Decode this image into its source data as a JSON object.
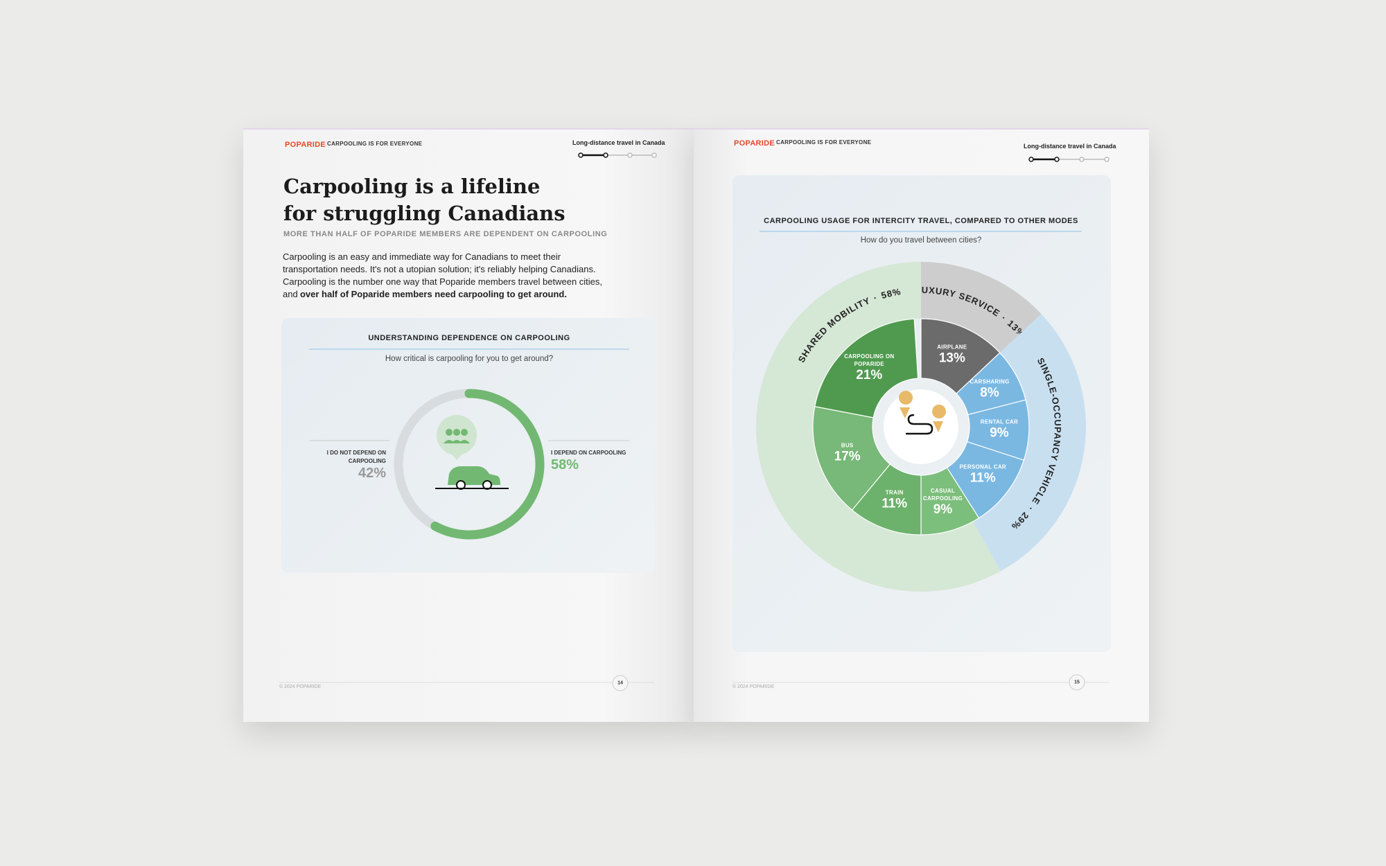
{
  "left_page": {
    "brand": "POPARIDE",
    "section": "CARPOOLING IS FOR EVERYONE",
    "chapter": "Long-distance travel in Canada",
    "title_lines": [
      "Carpooling is a lifeline",
      "for struggling Canadians"
    ],
    "subtitle": "MORE THAN HALF OF POPARIDE MEMBERS ARE DEPENDENT ON CARPOOLING",
    "body": "Carpooling is an easy and immediate way for Canadians to meet their transportation needs. It's not a utopian solution; it's reliably helping Canadians. Carpooling is the number one way that Poparide members travel between cities, and",
    "body_bold": "over half of Poparide members need carpooling to get around.",
    "footer": "© 2024 POPARIDE",
    "page_number": "14"
  },
  "right_page": {
    "brand": "POPARIDE",
    "section": "CARPOOLING IS FOR EVERYONE",
    "chapter": "Long-distance travel in Canada",
    "footer": "© 2024 POPARIDE",
    "page_number": "15"
  },
  "chart_data": [
    {
      "type": "donut",
      "title": "UNDERSTANDING DEPENDENCE ON CARPOOLING",
      "subtitle": "How critical is carpooling for you to get around?",
      "categories": [
        "I DO NOT DEPEND ON CARPOOLING",
        "I DEPEND ON CARPOOLING"
      ],
      "values": [
        42,
        58
      ],
      "value_labels": [
        "42%",
        "58%"
      ],
      "colors": [
        "#d9dcde",
        "#72b872"
      ]
    },
    {
      "type": "sunburst",
      "title": "CARPOOLING USAGE FOR INTERCITY TRAVEL, COMPARED TO OTHER MODES",
      "subtitle": "How do you travel between cities?",
      "separator": "·",
      "series": [
        {
          "name": "LUXURY SERVICE",
          "value": 13,
          "value_label": "13%",
          "color": "#cdcdcd",
          "children": [
            {
              "name": "AIRPLANE",
              "value": 13,
              "value_label": "13%",
              "color": "#6b6b6b"
            }
          ]
        },
        {
          "name": "SINGLE-OCCUPANCY VEHICLE",
          "value": 29,
          "value_label": "29%",
          "color": "#c8dff0",
          "children": [
            {
              "name": "CARSHARING",
              "value": 8,
              "value_label": "8%",
              "color": "#7ab8e2"
            },
            {
              "name": "RENTAL CAR",
              "value": 9,
              "value_label": "9%",
              "color": "#7ab8e2"
            },
            {
              "name": "PERSONAL CAR",
              "value": 11,
              "value_label": "11%",
              "color": "#7ab8e2"
            }
          ]
        },
        {
          "name": "SHARED MOBILITY",
          "value": 58,
          "value_label": "58%",
          "color": "#d5e7d5",
          "children": [
            {
              "name": "CASUAL CARPOOLING",
              "value": 9,
              "value_label": "9%",
              "color": "#7cbe7c"
            },
            {
              "name": "TRAIN",
              "value": 11,
              "value_label": "11%",
              "color": "#6cb26c"
            },
            {
              "name": "BUS",
              "value": 17,
              "value_label": "17%",
              "color": "#78b878"
            },
            {
              "name": "CARPOOLING ON POPARIDE",
              "value": 21,
              "value_label": "21%",
              "color": "#4f9a4f"
            }
          ]
        }
      ]
    }
  ]
}
